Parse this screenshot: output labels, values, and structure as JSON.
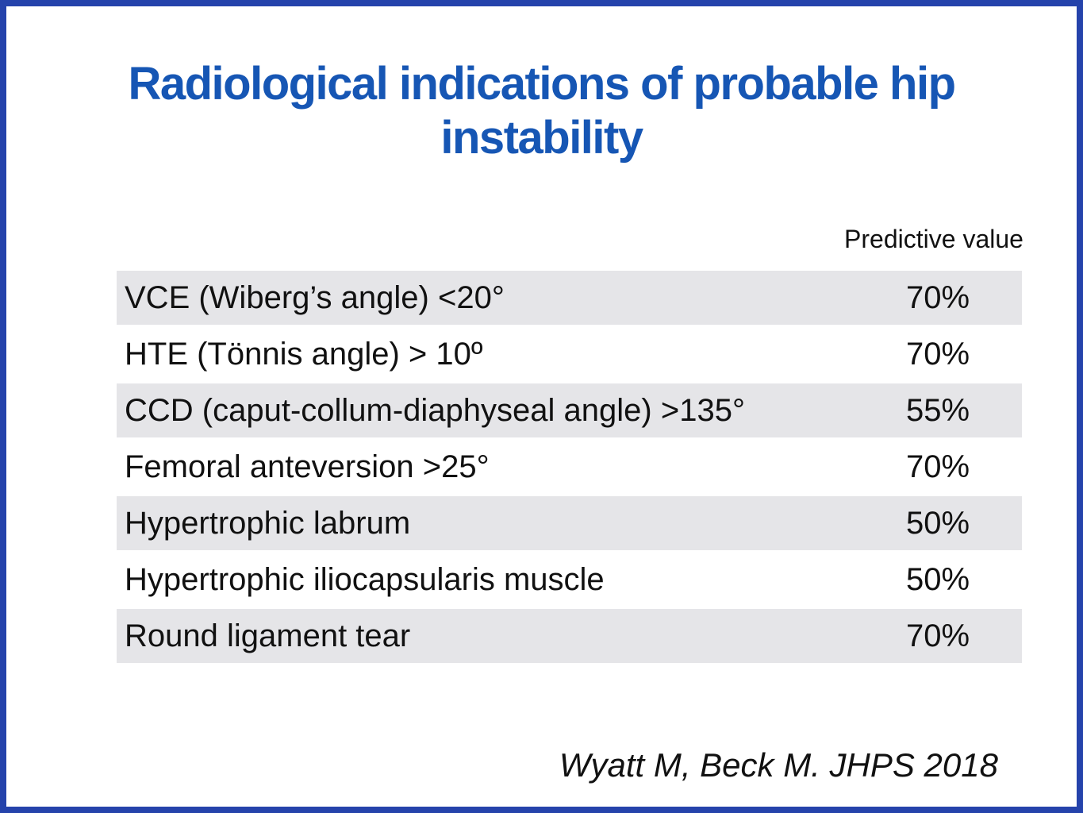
{
  "slide": {
    "title_lines": {
      "line1": "Radiological indications of probable hip",
      "line2": "instability"
    },
    "column_header": "Predictive value",
    "table": {
      "rows": [
        {
          "label": "VCE (Wiberg’s angle) <20°",
          "value": "70%"
        },
        {
          "label": "HTE (Tönnis angle) > 10º",
          "value": "70%"
        },
        {
          "label": "CCD (caput-collum-diaphyseal angle) >135°",
          "value": "55%"
        },
        {
          "label": "Femoral anteversion >25°",
          "value": "70%"
        },
        {
          "label": "Hypertrophic labrum",
          "value": "50%"
        },
        {
          "label": "Hypertrophic iliocapsularis muscle",
          "value": "50%"
        },
        {
          "label": "Round ligament tear",
          "value": "70%"
        }
      ]
    },
    "citation": "Wyatt M, Beck M. JHPS 2018",
    "colors": {
      "title_blue": "#1656b4",
      "frame_blue": "#2543ab",
      "row_gray": "#e5e5e8"
    }
  }
}
